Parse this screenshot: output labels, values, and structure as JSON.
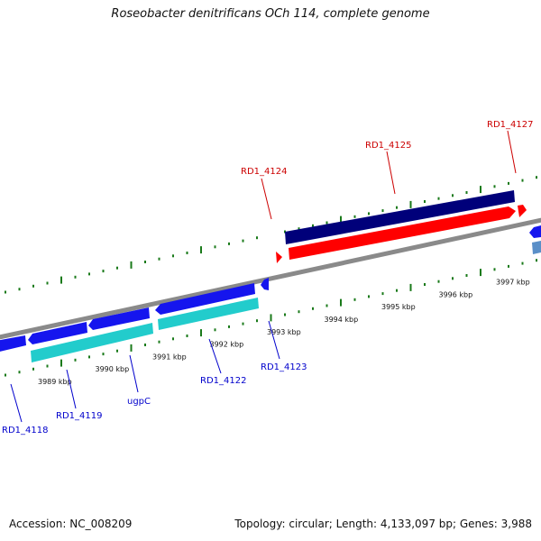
{
  "title": "Roseobacter denitrificans OCh 114, complete genome",
  "footer": {
    "accession": "Accession: NC_008209",
    "summary": "Topology: circular; Length: 4,133,097 bp; Genes: 3,988"
  },
  "colors": {
    "backbone": "#8a8a8a",
    "tick": "#1a7a1a",
    "forward_label": "#cc0000",
    "reverse_label": "#0000cc",
    "cds_forward_dark": "#00007a",
    "cds_forward_red": "#ff0000",
    "cds_reverse_blue": "#1515ee",
    "cds_reverse_cyan": "#22cccc",
    "cds_reverse_steel": "#5a8fc8"
  },
  "scale": {
    "tick_labels": [
      "3989 kbp",
      "3990 kbp",
      "3991 kbp",
      "3992 kbp",
      "3993 kbp",
      "3994 kbp",
      "3995 kbp",
      "3996 kbp",
      "3997 kbp"
    ]
  },
  "genes": [
    {
      "id": "RD1_4118",
      "label": "RD1_4118",
      "strand": "reverse"
    },
    {
      "id": "RD1_4119",
      "label": "RD1_4119",
      "strand": "reverse"
    },
    {
      "id": "ugpC",
      "label": "ugpC",
      "strand": "reverse"
    },
    {
      "id": "RD1_4122",
      "label": "RD1_4122",
      "strand": "reverse"
    },
    {
      "id": "RD1_4123",
      "label": "RD1_4123",
      "strand": "reverse"
    },
    {
      "id": "RD1_4124",
      "label": "RD1_4124",
      "strand": "forward"
    },
    {
      "id": "RD1_4125",
      "label": "RD1_4125",
      "strand": "forward"
    },
    {
      "id": "RD1_4127",
      "label": "RD1_4127",
      "strand": "forward"
    }
  ]
}
